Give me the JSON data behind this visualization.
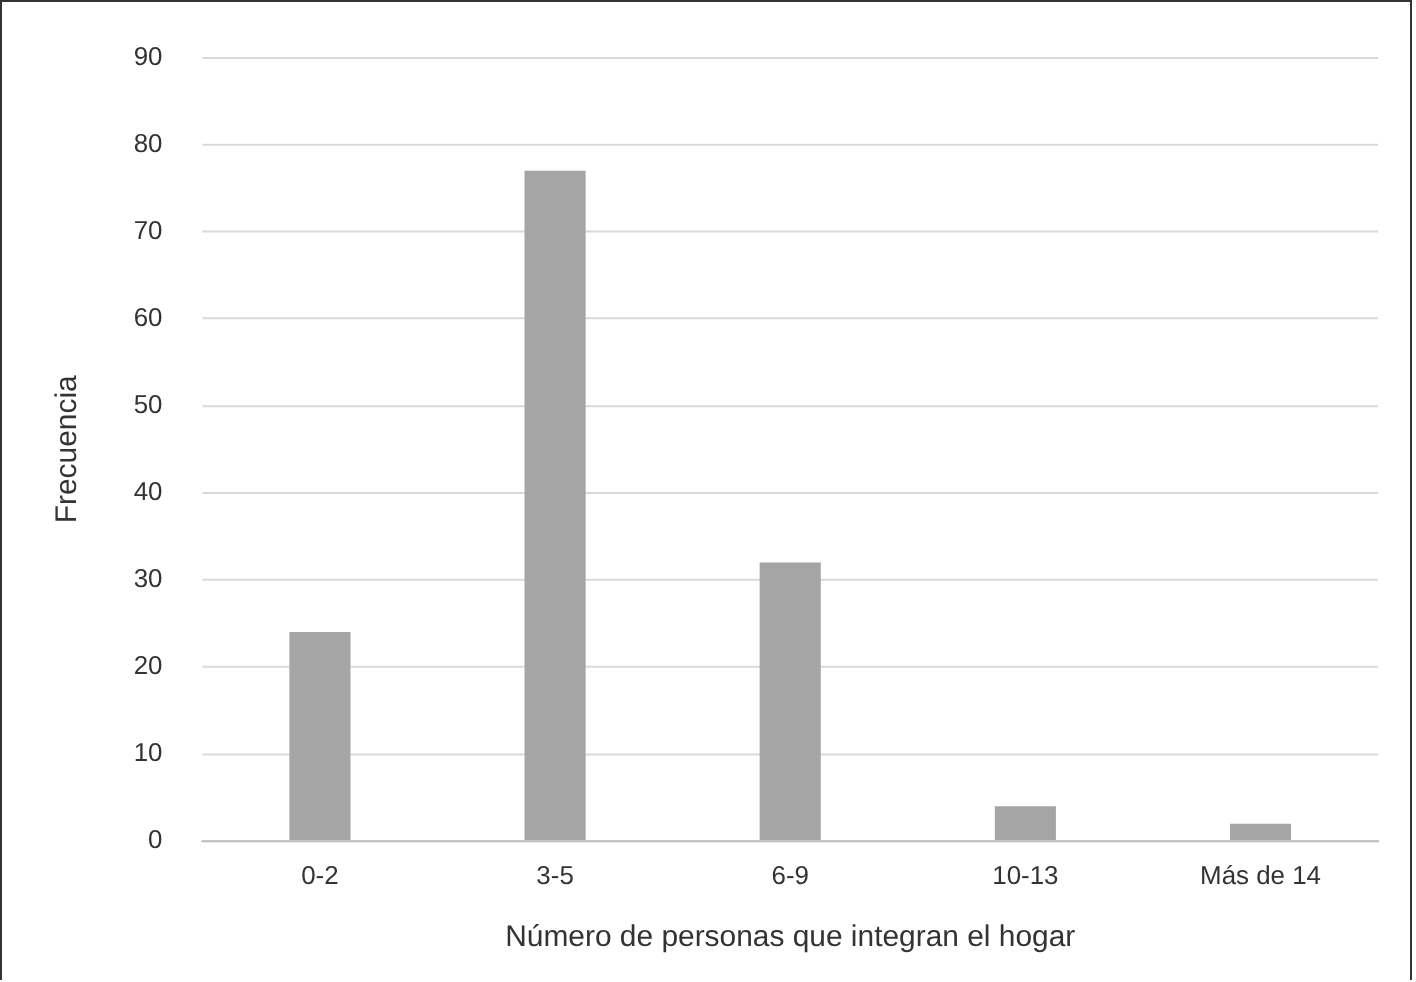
{
  "chart_data": {
    "type": "bar",
    "xlabel": "Número de personas que integran el hogar",
    "ylabel": "Frecuencia",
    "categories": [
      "0-2",
      "3-5",
      "6-9",
      "10-13",
      "Más de 14"
    ],
    "values": [
      24,
      77,
      32,
      4,
      2
    ],
    "color": "#a5a5a5",
    "ylim": [
      0,
      90
    ],
    "yticks": [
      0,
      10,
      20,
      30,
      40,
      50,
      60,
      70,
      80,
      90
    ],
    "grid": "y",
    "legend": false
  }
}
